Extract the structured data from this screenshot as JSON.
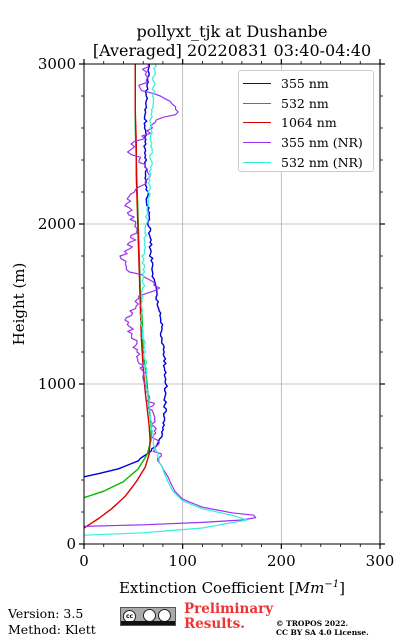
{
  "title": {
    "line1": "pollyxt_tjk at Dushanbe",
    "line2": "[Averaged] 20220831 03:40-04:40"
  },
  "chart_data": {
    "type": "line",
    "title": "pollyxt_tjk at Dushanbe [Averaged] 20220831 03:40-04:40",
    "xlabel": "Extinction Coefficient [Mm⁻¹]",
    "ylabel": "Height (m)",
    "xlim": [
      0,
      300
    ],
    "ylim": [
      0,
      3000
    ],
    "x_ticks": [
      0,
      100,
      200,
      300
    ],
    "y_ticks": [
      0,
      1000,
      2000,
      3000
    ],
    "x_tick_labels": [
      "0",
      "100",
      "200",
      "300"
    ],
    "y_tick_labels": [
      "0",
      "1000",
      "2000",
      "3000"
    ],
    "grid": true,
    "legend_position": "top-right",
    "series": [
      {
        "name": "355 nm",
        "color": "#0000dd",
        "width": 1.4,
        "jitter": 1.5,
        "points": [
          [
            0,
            420
          ],
          [
            15,
            440
          ],
          [
            35,
            470
          ],
          [
            55,
            520
          ],
          [
            68,
            580
          ],
          [
            76,
            640
          ],
          [
            80,
            700
          ],
          [
            82,
            800
          ],
          [
            82,
            900
          ],
          [
            83,
            1000
          ],
          [
            82,
            1100
          ],
          [
            81,
            1200
          ],
          [
            79,
            1300
          ],
          [
            78,
            1400
          ],
          [
            75,
            1500
          ],
          [
            72,
            1600
          ],
          [
            70,
            1700
          ],
          [
            68,
            1800
          ],
          [
            67,
            1900
          ],
          [
            66,
            2000
          ],
          [
            65,
            2100
          ],
          [
            64,
            2200
          ],
          [
            63,
            2300
          ],
          [
            63,
            2400
          ],
          [
            62,
            2500
          ],
          [
            62,
            2600
          ],
          [
            63,
            2700
          ],
          [
            63,
            2800
          ],
          [
            64,
            2900
          ],
          [
            66,
            3000
          ]
        ]
      },
      {
        "name": "532 nm",
        "color": "#00bb00",
        "width": 1.4,
        "jitter": 0,
        "points": [
          [
            0,
            290
          ],
          [
            20,
            330
          ],
          [
            40,
            390
          ],
          [
            55,
            470
          ],
          [
            64,
            560
          ],
          [
            68,
            650
          ],
          [
            68,
            740
          ],
          [
            66,
            850
          ],
          [
            64,
            1000
          ],
          [
            62,
            1100
          ],
          [
            60,
            1200
          ],
          [
            59,
            1400
          ],
          [
            57,
            1600
          ],
          [
            56,
            1800
          ],
          [
            55,
            2000
          ],
          [
            54,
            2200
          ],
          [
            53,
            2400
          ],
          [
            52,
            2600
          ],
          [
            52,
            2800
          ],
          [
            52,
            3000
          ]
        ]
      },
      {
        "name": "1064 nm",
        "color": "#dd0000",
        "width": 1.4,
        "jitter": 0,
        "points": [
          [
            0,
            100
          ],
          [
            5,
            120
          ],
          [
            15,
            160
          ],
          [
            28,
            220
          ],
          [
            42,
            300
          ],
          [
            53,
            390
          ],
          [
            62,
            480
          ],
          [
            66,
            560
          ],
          [
            67,
            650
          ],
          [
            66,
            740
          ],
          [
            64,
            850
          ],
          [
            62,
            950
          ],
          [
            60,
            1100
          ],
          [
            58,
            1300
          ],
          [
            57,
            1500
          ],
          [
            56,
            1700
          ],
          [
            55,
            1900
          ],
          [
            54,
            2100
          ],
          [
            53,
            2300
          ],
          [
            53,
            2500
          ],
          [
            52,
            2700
          ],
          [
            52,
            2900
          ],
          [
            52,
            3000
          ]
        ]
      },
      {
        "name": "355 nm (NR)",
        "color": "#9933ee",
        "width": 1.2,
        "jitter": 4,
        "points": [
          [
            0,
            110
          ],
          [
            60,
            120
          ],
          [
            120,
            135
          ],
          [
            160,
            150
          ],
          [
            174,
            165
          ],
          [
            172,
            180
          ],
          [
            150,
            195
          ],
          [
            120,
            230
          ],
          [
            100,
            280
          ],
          [
            92,
            330
          ],
          [
            88,
            380
          ],
          [
            85,
            420
          ],
          [
            80,
            470
          ],
          [
            75,
            550
          ],
          [
            72,
            650
          ],
          [
            70,
            750
          ],
          [
            68,
            850
          ],
          [
            66,
            950
          ],
          [
            60,
            1100
          ],
          [
            55,
            1200
          ],
          [
            48,
            1300
          ],
          [
            45,
            1400
          ],
          [
            52,
            1500
          ],
          [
            55,
            1550
          ],
          [
            75,
            1600
          ],
          [
            65,
            1650
          ],
          [
            50,
            1700
          ],
          [
            38,
            1750
          ],
          [
            40,
            1800
          ],
          [
            50,
            1900
          ],
          [
            52,
            2000
          ],
          [
            45,
            2100
          ],
          [
            48,
            2200
          ],
          [
            60,
            2250
          ],
          [
            70,
            2300
          ],
          [
            58,
            2400
          ],
          [
            45,
            2450
          ],
          [
            50,
            2500
          ],
          [
            62,
            2550
          ],
          [
            70,
            2600
          ],
          [
            72,
            2650
          ],
          [
            98,
            2700
          ],
          [
            90,
            2750
          ],
          [
            75,
            2800
          ],
          [
            55,
            2850
          ],
          [
            62,
            2900
          ],
          [
            60,
            2950
          ],
          [
            65,
            3000
          ]
        ]
      },
      {
        "name": "532 nm (NR)",
        "color": "#33eedd",
        "width": 1.2,
        "jitter": 1.5,
        "points": [
          [
            0,
            55
          ],
          [
            60,
            70
          ],
          [
            120,
            100
          ],
          [
            165,
            150
          ],
          [
            150,
            180
          ],
          [
            120,
            220
          ],
          [
            100,
            270
          ],
          [
            90,
            330
          ],
          [
            85,
            390
          ],
          [
            81,
            450
          ],
          [
            75,
            550
          ],
          [
            70,
            650
          ],
          [
            68,
            750
          ],
          [
            66,
            850
          ],
          [
            64,
            950
          ],
          [
            62,
            1100
          ],
          [
            62,
            1200
          ],
          [
            60,
            1300
          ],
          [
            58,
            1400
          ],
          [
            59,
            1500
          ],
          [
            60,
            1600
          ],
          [
            60,
            1700
          ],
          [
            60,
            1800
          ],
          [
            62,
            1900
          ],
          [
            63,
            2000
          ],
          [
            65,
            2100
          ],
          [
            66,
            2200
          ],
          [
            67,
            2300
          ],
          [
            68,
            2400
          ],
          [
            68,
            2500
          ],
          [
            68,
            2600
          ],
          [
            68,
            2700
          ],
          [
            70,
            2800
          ],
          [
            71,
            2900
          ],
          [
            72,
            3000
          ]
        ]
      }
    ]
  },
  "footer": {
    "version": "Version: 3.5",
    "method": "Method: Klett",
    "preliminary_line1": "Preliminary",
    "preliminary_line2": "Results.",
    "copyright_line1": "© TROPOS 2022.",
    "copyright_line2": "CC BY SA 4.0 License."
  }
}
